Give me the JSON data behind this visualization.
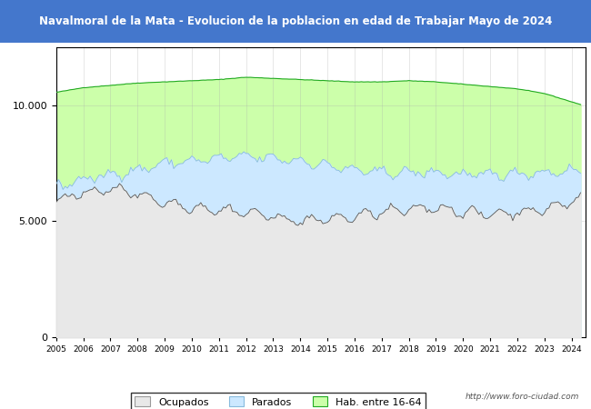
{
  "title": "Navalmoral de la Mata - Evolucion de la poblacion en edad de Trabajar Mayo de 2024",
  "title_bg": "#4477cc",
  "title_color": "white",
  "ylim": [
    0,
    12500
  ],
  "yticks": [
    0,
    5000,
    10000
  ],
  "year_start": 2005,
  "year_end": 2024,
  "color_hab": "#ccffaa",
  "color_parados": "#cce8ff",
  "color_ocupados": "#e8e8e8",
  "color_hab_line": "#22aa22",
  "color_parados_line": "#88bbdd",
  "color_ocupados_line": "#555555",
  "legend_labels": [
    "Ocupados",
    "Parados",
    "Hab. entre 16-64"
  ],
  "url_text": "http://www.foro-ciudad.com",
  "fig_bg": "#ffffff",
  "plot_bg": "#ffffff"
}
